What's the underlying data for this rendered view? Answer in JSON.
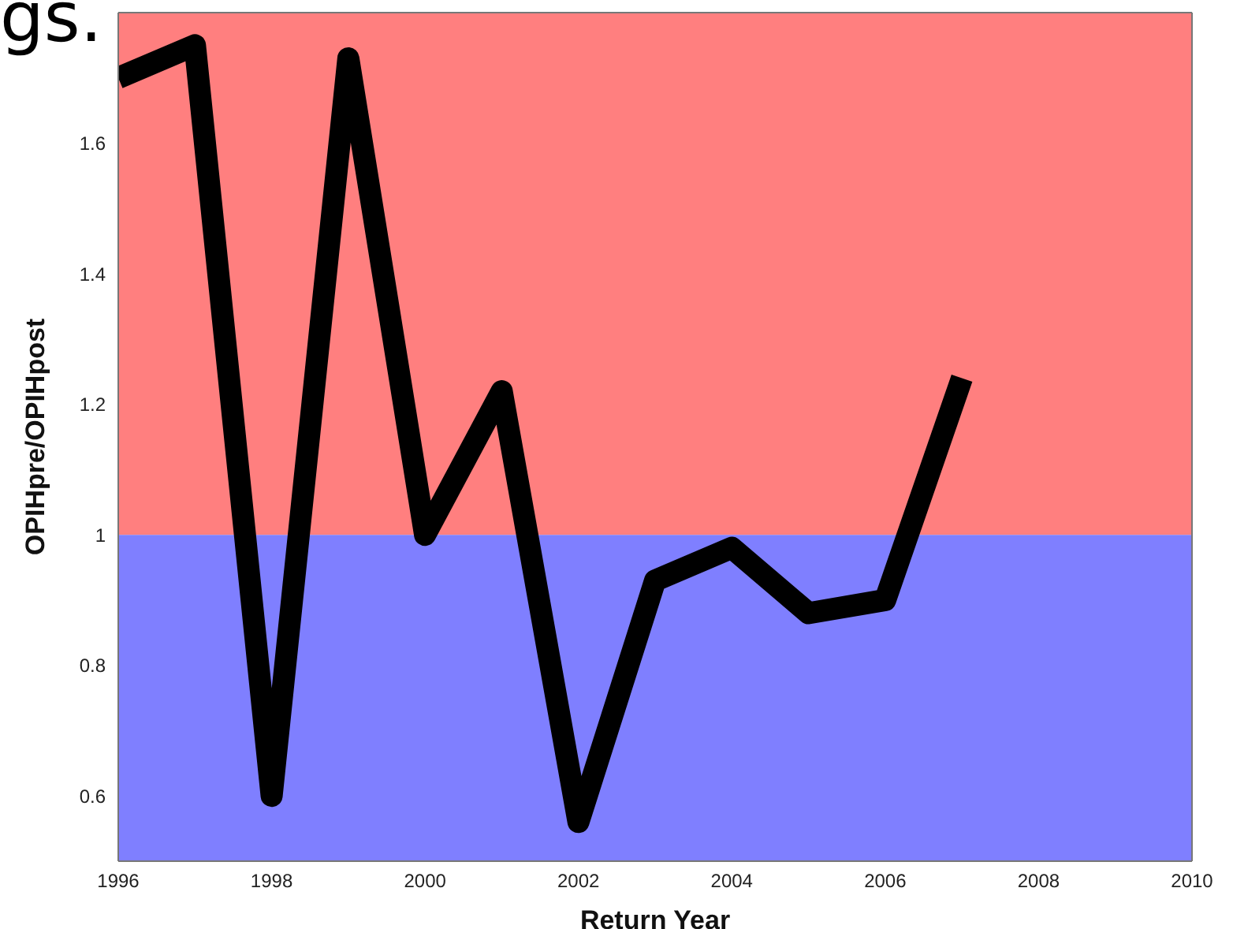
{
  "chart_data": {
    "type": "line",
    "xlabel": "Return Year",
    "ylabel": "OPIHpre/OPIHpost",
    "x": [
      1996,
      1997,
      1998,
      1999,
      2000,
      2001,
      2002,
      2003,
      2004,
      2005,
      2006,
      2007
    ],
    "series": [
      {
        "color": "#000000",
        "values": [
          1.7,
          1.75,
          0.6,
          1.73,
          1.0,
          1.22,
          0.56,
          0.93,
          0.98,
          0.88,
          0.9,
          1.24
        ]
      }
    ],
    "xlim": [
      1996,
      2010
    ],
    "xticks": [
      1996,
      1998,
      2000,
      2002,
      2004,
      2006,
      2008,
      2010
    ],
    "ylim": [
      0.5,
      1.8
    ],
    "yticks": [
      0.6,
      0.8,
      1,
      1.2,
      1.4,
      1.6
    ],
    "bands": [
      {
        "axis": "y",
        "from": 1,
        "to": 1.8,
        "color": "#ff7f7f"
      },
      {
        "axis": "y",
        "from": 0.5,
        "to": 1,
        "color": "#7f7fff"
      }
    ],
    "grid": false,
    "legend": false,
    "marker": "none",
    "line_style": "solid",
    "annotations": [
      "gs."
    ]
  }
}
